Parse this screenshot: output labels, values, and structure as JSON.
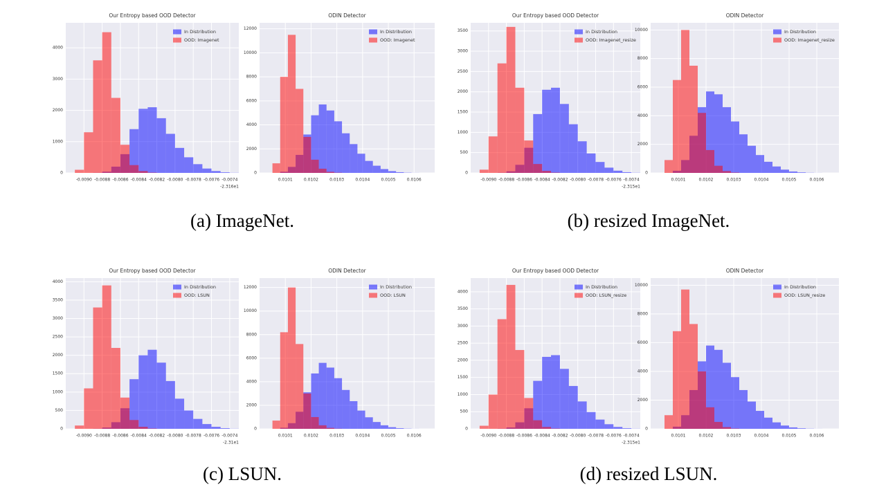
{
  "captions": [
    "(a) ImageNet.",
    "(b) resized ImageNet.",
    "(c) LSUN.",
    "(d) resized LSUN."
  ],
  "chart_data": [
    {
      "type": "histogram",
      "title": "Our Entropy based OOD Detector",
      "x_offset_label": "-2.316e1",
      "grid": true,
      "legend": "upper right",
      "bins": [
        -0.0091,
        -0.009,
        -0.0089,
        -0.0088,
        -0.0087,
        -0.0086,
        -0.0085,
        -0.0084,
        -0.0083,
        -0.0082,
        -0.0081,
        -0.008,
        -0.0079,
        -0.0078,
        -0.0077,
        -0.0076,
        -0.0075,
        -0.0074,
        -0.0073
      ],
      "series": [
        {
          "name": "In Distribution",
          "color": "#0000ff",
          "values": [
            0,
            0,
            5,
            40,
            200,
            600,
            1400,
            2050,
            2100,
            1750,
            1250,
            800,
            500,
            280,
            140,
            60,
            20,
            5
          ]
        },
        {
          "name": "OOD: Imagenet",
          "color": "#ff0000",
          "values": [
            100,
            1300,
            3600,
            4500,
            2400,
            900,
            250,
            60,
            10,
            0,
            0,
            0,
            0,
            0,
            0,
            0,
            0,
            0
          ]
        }
      ],
      "xlim": [
        -0.0092,
        -0.0073
      ],
      "ylim": [
        0,
        4800
      ],
      "xticks": [
        {
          "value": -0.009,
          "label": "-0.0090"
        },
        -0.0088,
        -0.0086,
        -0.0084,
        -0.0082,
        {
          "value": -0.008,
          "label": "-0.0080"
        },
        -0.0078,
        -0.0076,
        -0.0074
      ],
      "yticks": [
        0,
        1000,
        2000,
        3000,
        4000
      ]
    },
    {
      "type": "histogram",
      "title": "ODIN Detector",
      "grid": true,
      "legend": "upper right",
      "bins": [
        0.01005,
        0.01008,
        0.01011,
        0.01014,
        0.01017,
        0.0102,
        0.01023,
        0.01026,
        0.01029,
        0.01032,
        0.01035,
        0.01038,
        0.01041,
        0.01044,
        0.01047,
        0.0105,
        0.01053,
        0.01056,
        0.01059,
        0.01062,
        0.01065
      ],
      "series": [
        {
          "name": "In Distribution",
          "color": "#0000ff",
          "values": [
            0,
            100,
            500,
            1500,
            3200,
            4800,
            5700,
            5200,
            4300,
            3300,
            2400,
            1600,
            1000,
            600,
            320,
            150,
            60,
            20,
            5,
            0
          ]
        },
        {
          "name": "OOD: Imagenet",
          "color": "#ff0000",
          "values": [
            800,
            8000,
            11500,
            7000,
            3000,
            1100,
            350,
            90,
            20,
            0,
            0,
            0,
            0,
            0,
            0,
            0,
            0,
            0,
            0,
            0
          ]
        }
      ],
      "xlim": [
        0.01,
        0.01068
      ],
      "ylim": [
        0,
        12500
      ],
      "xticks": [
        0.0101,
        0.0102,
        0.0103,
        0.0104,
        0.0105,
        0.0106
      ],
      "yticks": [
        0,
        2000,
        4000,
        6000,
        8000,
        10000,
        12000
      ]
    },
    {
      "type": "histogram",
      "title": "Our Entropy based OOD Detector",
      "x_offset_label": "-2.315e1",
      "grid": true,
      "legend": "upper right",
      "bins": [
        -0.0091,
        -0.009,
        -0.0089,
        -0.0088,
        -0.0087,
        -0.0086,
        -0.0085,
        -0.0084,
        -0.0083,
        -0.0082,
        -0.0081,
        -0.008,
        -0.0079,
        -0.0078,
        -0.0077,
        -0.0076,
        -0.0075,
        -0.0074,
        -0.0073
      ],
      "series": [
        {
          "name": "In Distribution",
          "color": "#0000ff",
          "values": [
            0,
            0,
            5,
            40,
            200,
            620,
            1450,
            2050,
            2100,
            1700,
            1200,
            780,
            480,
            270,
            130,
            55,
            18,
            4
          ]
        },
        {
          "name": "OOD: Imagenet_resize",
          "color": "#ff0000",
          "values": [
            80,
            900,
            2700,
            3600,
            2100,
            800,
            220,
            50,
            8,
            0,
            0,
            0,
            0,
            0,
            0,
            0,
            0,
            0
          ]
        }
      ],
      "xlim": [
        -0.0092,
        -0.0073
      ],
      "ylim": [
        0,
        3700
      ],
      "xticks": [
        {
          "value": -0.009,
          "label": "-0.0090"
        },
        -0.0088,
        -0.0086,
        -0.0084,
        -0.0082,
        {
          "value": -0.008,
          "label": "-0.0080"
        },
        -0.0078,
        -0.0076,
        -0.0074
      ],
      "yticks": [
        0,
        500,
        1000,
        1500,
        2000,
        2500,
        3000,
        3500
      ]
    },
    {
      "type": "histogram",
      "title": "ODIN Detector",
      "grid": true,
      "legend": "upper right",
      "bins": [
        0.01005,
        0.01008,
        0.01011,
        0.01014,
        0.01017,
        0.0102,
        0.01023,
        0.01026,
        0.01029,
        0.01032,
        0.01035,
        0.01038,
        0.01041,
        0.01044,
        0.01047,
        0.0105,
        0.01053,
        0.01056,
        0.01059,
        0.01062,
        0.01065
      ],
      "series": [
        {
          "name": "In Distribution",
          "color": "#0000ff",
          "values": [
            0,
            150,
            900,
            2600,
            4600,
            5700,
            5500,
            4600,
            3600,
            2700,
            1900,
            1250,
            780,
            450,
            230,
            100,
            40,
            12,
            3,
            0
          ]
        },
        {
          "name": "OOD: Imagenet_resize",
          "color": "#ff0000",
          "values": [
            900,
            6500,
            10000,
            7500,
            4200,
            1600,
            500,
            130,
            25,
            0,
            0,
            0,
            0,
            0,
            0,
            0,
            0,
            0,
            0,
            0
          ]
        }
      ],
      "xlim": [
        0.01,
        0.01068
      ],
      "ylim": [
        0,
        10500
      ],
      "xticks": [
        0.0101,
        0.0102,
        0.0103,
        0.0104,
        0.0105,
        0.0106
      ],
      "yticks": [
        0,
        2000,
        4000,
        6000,
        8000,
        10000
      ]
    },
    {
      "type": "histogram",
      "title": "Our Entropy based OOD Detector",
      "x_offset_label": "-2.31e1",
      "grid": true,
      "legend": "upper right",
      "bins": [
        -0.0091,
        -0.009,
        -0.0089,
        -0.0088,
        -0.0087,
        -0.0086,
        -0.0085,
        -0.0084,
        -0.0083,
        -0.0082,
        -0.0081,
        -0.008,
        -0.0079,
        -0.0078,
        -0.0077,
        -0.0076,
        -0.0075,
        -0.0074,
        -0.0073
      ],
      "series": [
        {
          "name": "In Distribution",
          "color": "#0000ff",
          "values": [
            0,
            0,
            4,
            35,
            180,
            560,
            1350,
            2000,
            2150,
            1800,
            1300,
            820,
            500,
            270,
            130,
            55,
            18,
            4
          ]
        },
        {
          "name": "OOD: LSUN",
          "color": "#ff0000",
          "values": [
            90,
            1100,
            3300,
            3900,
            2200,
            850,
            240,
            55,
            9,
            0,
            0,
            0,
            0,
            0,
            0,
            0,
            0,
            0
          ]
        }
      ],
      "xlim": [
        -0.0092,
        -0.0073
      ],
      "ylim": [
        0,
        4100
      ],
      "xticks": [
        {
          "value": -0.009,
          "label": "-0.0090"
        },
        -0.0088,
        -0.0086,
        -0.0084,
        -0.0082,
        {
          "value": -0.008,
          "label": "-0.0080"
        },
        -0.0078,
        -0.0076,
        -0.0074
      ],
      "yticks": [
        0,
        500,
        1000,
        1500,
        2000,
        2500,
        3000,
        3500,
        4000
      ]
    },
    {
      "type": "histogram",
      "title": "ODIN Detector",
      "grid": true,
      "legend": "upper right",
      "bins": [
        0.01005,
        0.01008,
        0.01011,
        0.01014,
        0.01017,
        0.0102,
        0.01023,
        0.01026,
        0.01029,
        0.01032,
        0.01035,
        0.01038,
        0.01041,
        0.01044,
        0.01047,
        0.0105,
        0.01053,
        0.01056,
        0.01059,
        0.01062,
        0.01065
      ],
      "series": [
        {
          "name": "In Distribution",
          "color": "#0000ff",
          "values": [
            0,
            90,
            480,
            1450,
            3100,
            4700,
            5600,
            5200,
            4300,
            3300,
            2350,
            1550,
            980,
            580,
            300,
            140,
            55,
            18,
            4,
            0
          ]
        },
        {
          "name": "OOD: LSUN",
          "color": "#ff0000",
          "values": [
            700,
            8200,
            12000,
            7200,
            3000,
            1000,
            300,
            80,
            15,
            0,
            0,
            0,
            0,
            0,
            0,
            0,
            0,
            0,
            0,
            0
          ]
        }
      ],
      "xlim": [
        0.01,
        0.01068
      ],
      "ylim": [
        0,
        12800
      ],
      "xticks": [
        0.0101,
        0.0102,
        0.0103,
        0.0104,
        0.0105,
        0.0106
      ],
      "yticks": [
        0,
        2000,
        4000,
        6000,
        8000,
        10000,
        12000
      ]
    },
    {
      "type": "histogram",
      "title": "Our Entropy based OOD Detector",
      "x_offset_label": "-2.315e1",
      "grid": true,
      "legend": "upper right",
      "bins": [
        -0.0091,
        -0.009,
        -0.0089,
        -0.0088,
        -0.0087,
        -0.0086,
        -0.0085,
        -0.0084,
        -0.0083,
        -0.0082,
        -0.0081,
        -0.008,
        -0.0079,
        -0.0078,
        -0.0077,
        -0.0076,
        -0.0075,
        -0.0074,
        -0.0073
      ],
      "series": [
        {
          "name": "In Distribution",
          "color": "#0000ff",
          "values": [
            0,
            0,
            5,
            40,
            190,
            600,
            1400,
            2100,
            2150,
            1750,
            1250,
            800,
            490,
            270,
            135,
            55,
            18,
            4
          ]
        },
        {
          "name": "OOD: LSUN_resize",
          "color": "#ff0000",
          "values": [
            90,
            1000,
            3200,
            4200,
            2300,
            900,
            250,
            55,
            8,
            0,
            0,
            0,
            0,
            0,
            0,
            0,
            0,
            0
          ]
        }
      ],
      "xlim": [
        -0.0092,
        -0.0073
      ],
      "ylim": [
        0,
        4400
      ],
      "xticks": [
        {
          "value": -0.009,
          "label": "-0.0090"
        },
        -0.0088,
        -0.0086,
        -0.0084,
        -0.0082,
        {
          "value": -0.008,
          "label": "-0.0080"
        },
        -0.0078,
        -0.0076,
        -0.0074
      ],
      "yticks": [
        0,
        500,
        1000,
        1500,
        2000,
        2500,
        3000,
        3500,
        4000
      ]
    },
    {
      "type": "histogram",
      "title": "ODIN Detector",
      "grid": true,
      "legend": "upper right",
      "bins": [
        0.01005,
        0.01008,
        0.01011,
        0.01014,
        0.01017,
        0.0102,
        0.01023,
        0.01026,
        0.01029,
        0.01032,
        0.01035,
        0.01038,
        0.01041,
        0.01044,
        0.01047,
        0.0105,
        0.01053,
        0.01056,
        0.01059,
        0.01062,
        0.01065
      ],
      "series": [
        {
          "name": "In Distribution",
          "color": "#0000ff",
          "values": [
            0,
            150,
            950,
            2700,
            4700,
            5800,
            5500,
            4600,
            3600,
            2700,
            1900,
            1250,
            780,
            450,
            230,
            100,
            40,
            12,
            3,
            0
          ]
        },
        {
          "name": "OOD: LSUN_resize",
          "color": "#ff0000",
          "values": [
            950,
            6800,
            9700,
            7300,
            4000,
            1500,
            480,
            120,
            20,
            0,
            0,
            0,
            0,
            0,
            0,
            0,
            0,
            0,
            0,
            0
          ]
        }
      ],
      "xlim": [
        0.01,
        0.01068
      ],
      "ylim": [
        0,
        10500
      ],
      "xticks": [
        0.0101,
        0.0102,
        0.0103,
        0.0104,
        0.0105,
        0.0106
      ],
      "yticks": [
        0,
        2000,
        4000,
        6000,
        8000,
        10000
      ]
    }
  ]
}
